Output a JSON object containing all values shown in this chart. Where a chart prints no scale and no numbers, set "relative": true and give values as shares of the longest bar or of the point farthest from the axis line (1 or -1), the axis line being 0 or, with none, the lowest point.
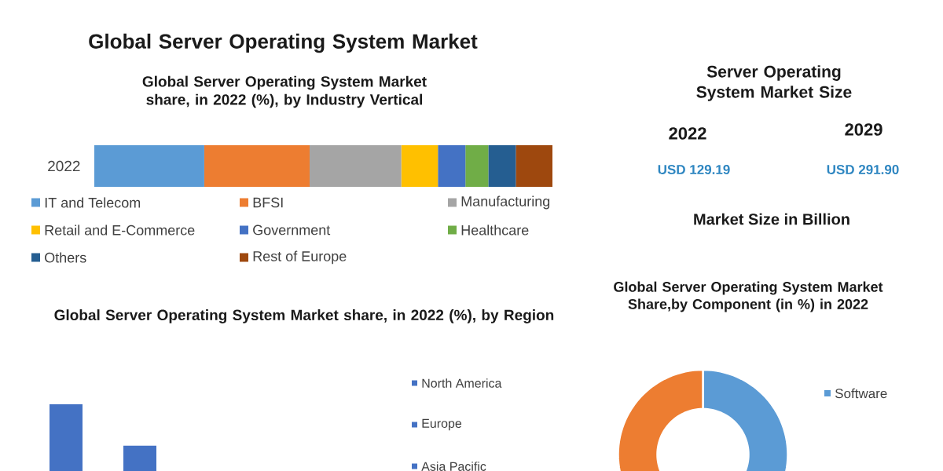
{
  "chart_data": [
    {
      "type": "bar",
      "orientation": "horizontal",
      "stacked": true,
      "relative": true,
      "title": "Global Server Operating System Market",
      "subtitle": "Global Server Operating System Market share, in 2022 (%), by Industry Vertical",
      "categories": [
        "2022"
      ],
      "legend": "bottom",
      "series": [
        {
          "name": "IT and Telecom",
          "color": "#5b9bd5",
          "values": [
            0.24
          ]
        },
        {
          "name": "BFSI",
          "color": "#ed7d31",
          "values": [
            0.23
          ]
        },
        {
          "name": "Manufacturing",
          "color": "#a5a5a5",
          "values": [
            0.2
          ]
        },
        {
          "name": "Retail and E-Commerce",
          "color": "#ffc000",
          "values": [
            0.08
          ]
        },
        {
          "name": "Government",
          "color": "#4472c4",
          "values": [
            0.06
          ]
        },
        {
          "name": "Healthcare",
          "color": "#70ad47",
          "values": [
            0.05
          ]
        },
        {
          "name": "Others",
          "color": "#255e91",
          "values": [
            0.06
          ]
        },
        {
          "name": "Rest of Europe",
          "color": "#9e480e",
          "values": [
            0.08
          ]
        }
      ]
    },
    {
      "type": "other",
      "title": "Server Operating System Market Size",
      "annotations": [
        "2022",
        "2029",
        "USD 129.19",
        "USD 291.90",
        "Market Size in Billion"
      ]
    },
    {
      "type": "bar",
      "relative": true,
      "title": "Global Server Operating System Market share, in 2022 (%), by Region",
      "categories": [
        null
      ],
      "legend": "right",
      "series": [
        {
          "name": "North America",
          "color": "#4472c4",
          "values": [
            1
          ]
        },
        {
          "name": "Europe",
          "color": "#4472c4",
          "values": [
            0.38
          ]
        },
        {
          "name": "Asia Pacific",
          "color": "#4472c4",
          "values": [
            null
          ]
        }
      ]
    },
    {
      "type": "donut",
      "title": "Global Server Operating System Market Share,by Component (in %) in 2022",
      "categories": [
        "Software",
        null
      ],
      "values": [
        50,
        50
      ],
      "colors": [
        "#5b9bd5",
        "#ed7d31"
      ],
      "legend": "right"
    }
  ]
}
